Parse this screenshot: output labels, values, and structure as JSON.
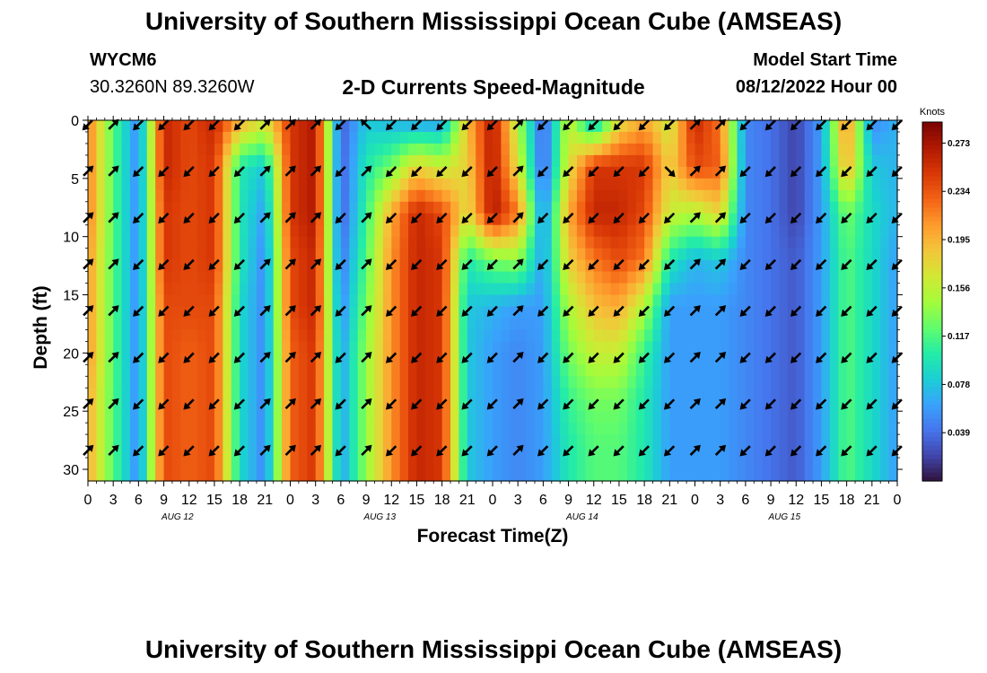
{
  "header": {
    "title": "University of Southern Mississippi Ocean Cube (AMSEAS)",
    "station_id": "WYCM6",
    "station_coords": "30.3260N  89.3260W",
    "plot_title": "2-D Currents Speed-Magnitude",
    "model_start_label": "Model Start Time",
    "model_start_value": "08/12/2022 Hour 00"
  },
  "footer": {
    "title": "University of Southern Mississippi Ocean Cube (AMSEAS)"
  },
  "chart_data": {
    "type": "heatmap",
    "title": "2-D Currents Speed-Magnitude",
    "xlabel": "Forecast Time(Z)",
    "ylabel": "Depth (ft)",
    "x_ticks": [
      "0",
      "3",
      "6",
      "9",
      "12",
      "15",
      "18",
      "21",
      "0",
      "3",
      "6",
      "9",
      "12",
      "15",
      "18",
      "21",
      "0",
      "3",
      "6",
      "9",
      "12",
      "15",
      "18",
      "21",
      "0",
      "3",
      "6",
      "9",
      "12",
      "15",
      "18",
      "21",
      "0"
    ],
    "x_tick_hours": [
      0,
      3,
      6,
      9,
      12,
      15,
      18,
      21,
      24,
      27,
      30,
      33,
      36,
      39,
      42,
      45,
      48,
      51,
      54,
      57,
      60,
      63,
      66,
      69,
      72,
      75,
      78,
      81,
      84,
      87,
      90,
      93,
      96
    ],
    "xlim": [
      0,
      96
    ],
    "date_labels": [
      {
        "label": "AUG 12",
        "hour": 12
      },
      {
        "label": "AUG 13",
        "hour": 36
      },
      {
        "label": "AUG 14",
        "hour": 60
      },
      {
        "label": "AUG 15",
        "hour": 84
      }
    ],
    "y_ticks": [
      "0",
      "5",
      "10",
      "15",
      "20",
      "25",
      "30"
    ],
    "y_tick_values": [
      0,
      5,
      10,
      15,
      20,
      25,
      30
    ],
    "ylim": [
      0,
      31
    ],
    "colorbar": {
      "label": "Knots",
      "ticks": [
        "0.273",
        "0.234",
        "0.195",
        "0.156",
        "0.117",
        "0.078",
        "0.039"
      ],
      "tick_values": [
        0.273,
        0.234,
        0.195,
        0.156,
        0.117,
        0.078,
        0.039
      ],
      "range": [
        0.0,
        0.29
      ],
      "colors": [
        "#30123b",
        "#4145ab",
        "#4675ed",
        "#39a2fc",
        "#1bcfd4",
        "#24eca6",
        "#61fc6c",
        "#a4fc3b",
        "#d1e834",
        "#f3c63a",
        "#fe9b2d",
        "#f36315",
        "#d93806",
        "#b11901",
        "#7a0403"
      ]
    },
    "depths_ft": [
      0,
      4,
      8,
      12,
      16,
      20,
      24,
      28
    ],
    "hours": [
      0,
      3,
      6,
      9,
      12,
      15,
      18,
      21,
      24,
      27,
      30,
      33,
      36,
      39,
      42,
      45,
      48,
      51,
      54,
      57,
      60,
      63,
      66,
      69,
      72,
      75,
      78,
      81,
      84,
      87,
      90,
      93,
      96
    ],
    "speed_knots": [
      [
        0.22,
        0.12,
        0.05,
        0.26,
        0.24,
        0.26,
        0.2,
        0.17,
        0.25,
        0.27,
        0.03,
        0.08,
        0.07,
        0.06,
        0.06,
        0.19,
        0.27,
        0.15,
        0.03,
        0.16,
        0.07,
        0.17,
        0.2,
        0.16,
        0.26,
        0.22,
        0.05,
        0.04,
        0.02,
        0.06,
        0.22,
        0.05,
        0.07
      ],
      [
        0.22,
        0.12,
        0.05,
        0.26,
        0.24,
        0.25,
        0.1,
        0.08,
        0.25,
        0.27,
        0.03,
        0.1,
        0.13,
        0.18,
        0.16,
        0.18,
        0.27,
        0.17,
        0.03,
        0.17,
        0.25,
        0.25,
        0.25,
        0.18,
        0.24,
        0.23,
        0.05,
        0.04,
        0.02,
        0.06,
        0.2,
        0.08,
        0.07
      ],
      [
        0.22,
        0.12,
        0.05,
        0.25,
        0.24,
        0.25,
        0.1,
        0.06,
        0.25,
        0.27,
        0.03,
        0.11,
        0.2,
        0.26,
        0.24,
        0.17,
        0.27,
        0.22,
        0.05,
        0.2,
        0.26,
        0.26,
        0.24,
        0.16,
        0.15,
        0.18,
        0.05,
        0.04,
        0.02,
        0.06,
        0.13,
        0.09,
        0.07
      ],
      [
        0.21,
        0.12,
        0.05,
        0.25,
        0.24,
        0.25,
        0.1,
        0.05,
        0.24,
        0.26,
        0.04,
        0.12,
        0.21,
        0.26,
        0.25,
        0.1,
        0.13,
        0.14,
        0.06,
        0.18,
        0.22,
        0.24,
        0.22,
        0.1,
        0.07,
        0.08,
        0.05,
        0.04,
        0.03,
        0.06,
        0.12,
        0.09,
        0.06
      ],
      [
        0.21,
        0.12,
        0.05,
        0.24,
        0.24,
        0.24,
        0.09,
        0.05,
        0.24,
        0.26,
        0.05,
        0.13,
        0.21,
        0.26,
        0.25,
        0.08,
        0.07,
        0.06,
        0.06,
        0.15,
        0.19,
        0.2,
        0.15,
        0.06,
        0.06,
        0.06,
        0.05,
        0.04,
        0.03,
        0.06,
        0.12,
        0.09,
        0.06
      ],
      [
        0.21,
        0.12,
        0.05,
        0.24,
        0.23,
        0.24,
        0.09,
        0.05,
        0.23,
        0.25,
        0.06,
        0.14,
        0.21,
        0.26,
        0.25,
        0.08,
        0.06,
        0.05,
        0.06,
        0.13,
        0.16,
        0.16,
        0.11,
        0.06,
        0.06,
        0.06,
        0.05,
        0.04,
        0.03,
        0.06,
        0.12,
        0.09,
        0.06
      ],
      [
        0.2,
        0.12,
        0.05,
        0.24,
        0.23,
        0.24,
        0.09,
        0.05,
        0.23,
        0.25,
        0.06,
        0.14,
        0.21,
        0.26,
        0.25,
        0.08,
        0.06,
        0.05,
        0.06,
        0.11,
        0.13,
        0.13,
        0.1,
        0.06,
        0.06,
        0.06,
        0.05,
        0.04,
        0.03,
        0.06,
        0.12,
        0.09,
        0.06
      ],
      [
        0.2,
        0.12,
        0.05,
        0.24,
        0.23,
        0.24,
        0.09,
        0.05,
        0.23,
        0.25,
        0.06,
        0.14,
        0.21,
        0.26,
        0.25,
        0.08,
        0.06,
        0.05,
        0.06,
        0.1,
        0.12,
        0.12,
        0.1,
        0.06,
        0.06,
        0.06,
        0.05,
        0.04,
        0.03,
        0.06,
        0.12,
        0.09,
        0.06
      ]
    ],
    "direction_deg": [
      [
        225,
        45,
        225,
        225,
        225,
        225,
        225,
        45,
        45,
        45,
        225,
        135,
        225,
        225,
        225,
        225,
        225,
        45,
        225,
        225,
        225,
        225,
        225,
        225,
        45,
        45,
        225,
        225,
        225,
        225,
        225,
        225,
        225
      ],
      [
        45,
        45,
        225,
        225,
        225,
        225,
        225,
        45,
        45,
        45,
        225,
        45,
        225,
        225,
        225,
        225,
        225,
        45,
        225,
        225,
        225,
        225,
        225,
        315,
        45,
        45,
        225,
        225,
        225,
        225,
        225,
        225,
        225
      ],
      [
        45,
        45,
        225,
        225,
        225,
        225,
        225,
        45,
        45,
        45,
        225,
        45,
        225,
        225,
        225,
        225,
        225,
        45,
        225,
        225,
        225,
        225,
        225,
        225,
        45,
        45,
        225,
        225,
        225,
        225,
        225,
        225,
        225
      ],
      [
        45,
        45,
        225,
        225,
        225,
        225,
        225,
        45,
        45,
        45,
        225,
        45,
        225,
        225,
        225,
        225,
        225,
        45,
        225,
        225,
        225,
        225,
        225,
        225,
        45,
        45,
        225,
        225,
        225,
        225,
        225,
        225,
        225
      ],
      [
        45,
        45,
        225,
        225,
        225,
        225,
        225,
        45,
        45,
        45,
        225,
        45,
        225,
        225,
        225,
        225,
        225,
        45,
        225,
        225,
        225,
        225,
        225,
        225,
        45,
        45,
        225,
        225,
        225,
        225,
        225,
        225,
        225
      ],
      [
        45,
        45,
        225,
        225,
        225,
        225,
        225,
        45,
        45,
        45,
        225,
        45,
        225,
        225,
        225,
        225,
        225,
        45,
        225,
        225,
        225,
        225,
        225,
        225,
        45,
        45,
        225,
        225,
        225,
        225,
        225,
        225,
        225
      ],
      [
        45,
        45,
        225,
        225,
        225,
        225,
        225,
        45,
        45,
        45,
        225,
        45,
        225,
        225,
        225,
        225,
        225,
        45,
        225,
        225,
        225,
        225,
        225,
        225,
        45,
        45,
        225,
        225,
        225,
        225,
        225,
        225,
        225
      ],
      [
        45,
        45,
        225,
        225,
        225,
        225,
        225,
        45,
        45,
        45,
        225,
        45,
        225,
        225,
        225,
        225,
        225,
        45,
        225,
        225,
        225,
        225,
        225,
        225,
        45,
        45,
        225,
        225,
        225,
        225,
        225,
        225,
        225
      ]
    ]
  }
}
